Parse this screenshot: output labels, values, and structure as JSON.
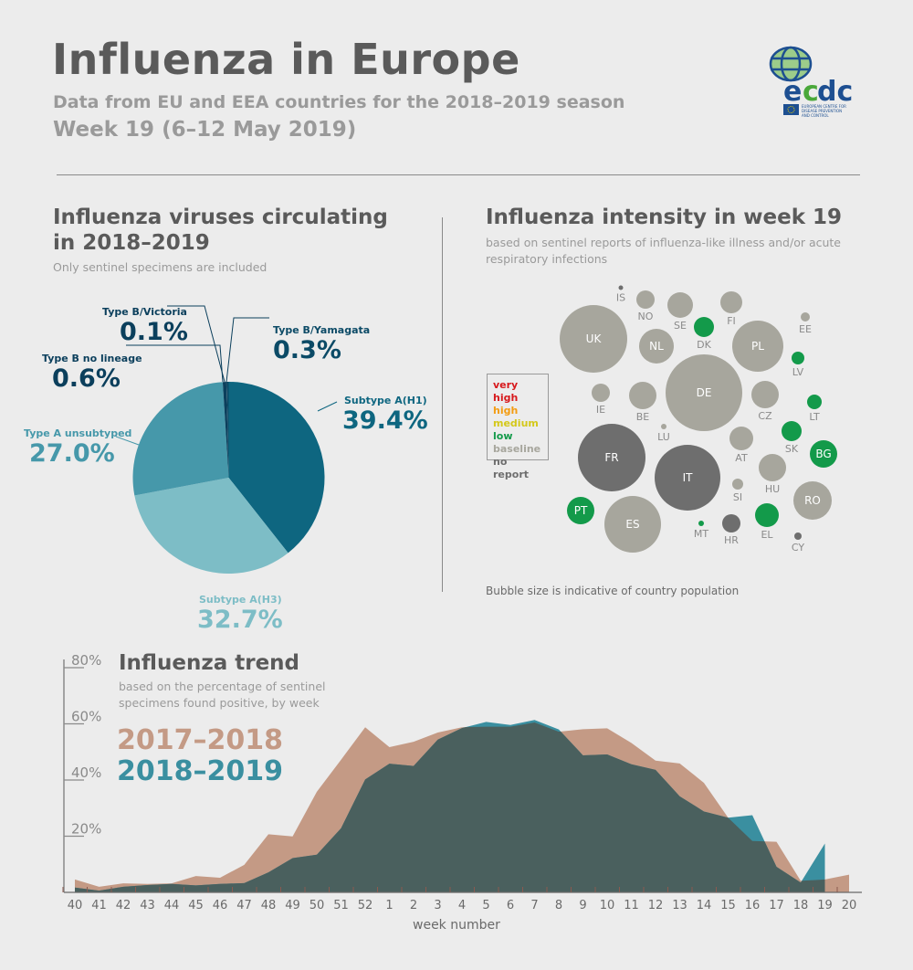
{
  "header": {
    "title": "Influenza in Europe",
    "subtitle": "Data from EU and EEA countries for the 2018–2019 season",
    "week": "Week 19 (6–12 May 2019)",
    "logo_text": "ecdc",
    "logo_caption": "EUROPEAN CENTRE FOR DISEASE PREVENTION AND CONTROL"
  },
  "viruses": {
    "title_line1": "Influenza viruses circulating",
    "title_line2": "in 2018–2019",
    "note": "Only sentinel specimens are included"
  },
  "intensity": {
    "title": "Influenza intensity in week 19",
    "note": "based on sentinel reports of influenza-like illness and/or acute respiratory infections",
    "footnote": "Bubble size is indicative of country population"
  },
  "trend": {
    "title": "Influenza trend",
    "note": "based on the percentage of sentinel specimens found positive, by week"
  },
  "chart_data": [
    {
      "type": "pie",
      "slices": [
        {
          "label": "Subtype A(H1)",
          "value": 39.4,
          "display": "39.4%",
          "color": "#0e6680"
        },
        {
          "label": "Subtype A(H3)",
          "value": 32.7,
          "display": "32.7%",
          "color": "#7dbdc6"
        },
        {
          "label": "Type A unsubtyped",
          "value": 27.0,
          "display": "27.0%",
          "color": "#4698aa"
        },
        {
          "label": "Type B no lineage",
          "value": 0.6,
          "display": "0.6%",
          "color": "#0b3f5c"
        },
        {
          "label": "Type B/Victoria",
          "value": 0.1,
          "display": "0.1%",
          "color": "#0b3f5c"
        },
        {
          "label": "Type B/Yamagata",
          "value": 0.3,
          "display": "0.3%",
          "color": "#0b4a66"
        }
      ]
    },
    {
      "type": "bubble",
      "legend": [
        {
          "label": "very high",
          "color": "#d7191c"
        },
        {
          "label": "high",
          "color": "#f39c12"
        },
        {
          "label": "medium",
          "color": "#d4c81a"
        },
        {
          "label": "low",
          "color": "#139a4a"
        },
        {
          "label": "baseline",
          "color": "#a7a69d"
        },
        {
          "label": "no report",
          "color": "#6e6e6e"
        }
      ],
      "countries": [
        {
          "code": "IS",
          "status": "no report"
        },
        {
          "code": "NO",
          "status": "baseline"
        },
        {
          "code": "SE",
          "status": "baseline"
        },
        {
          "code": "FI",
          "status": "baseline"
        },
        {
          "code": "DK",
          "status": "low"
        },
        {
          "code": "EE",
          "status": "baseline"
        },
        {
          "code": "UK",
          "status": "baseline"
        },
        {
          "code": "NL",
          "status": "baseline"
        },
        {
          "code": "PL",
          "status": "baseline"
        },
        {
          "code": "LV",
          "status": "low"
        },
        {
          "code": "DE",
          "status": "baseline"
        },
        {
          "code": "IE",
          "status": "baseline"
        },
        {
          "code": "BE",
          "status": "baseline"
        },
        {
          "code": "CZ",
          "status": "baseline"
        },
        {
          "code": "LT",
          "status": "low"
        },
        {
          "code": "LU",
          "status": "baseline"
        },
        {
          "code": "AT",
          "status": "baseline"
        },
        {
          "code": "SK",
          "status": "low"
        },
        {
          "code": "BG",
          "status": "low"
        },
        {
          "code": "FR",
          "status": "no report"
        },
        {
          "code": "IT",
          "status": "no report"
        },
        {
          "code": "HU",
          "status": "baseline"
        },
        {
          "code": "SI",
          "status": "baseline"
        },
        {
          "code": "RO",
          "status": "baseline"
        },
        {
          "code": "PT",
          "status": "low"
        },
        {
          "code": "ES",
          "status": "baseline"
        },
        {
          "code": "MT",
          "status": "low"
        },
        {
          "code": "HR",
          "status": "no report"
        },
        {
          "code": "EL",
          "status": "low"
        },
        {
          "code": "CY",
          "status": "no report"
        }
      ]
    },
    {
      "type": "area",
      "xlabel": "week number",
      "categories": [
        "40",
        "41",
        "42",
        "43",
        "44",
        "45",
        "46",
        "47",
        "48",
        "49",
        "50",
        "51",
        "52",
        "1",
        "2",
        "3",
        "4",
        "5",
        "6",
        "7",
        "8",
        "9",
        "10",
        "11",
        "12",
        "13",
        "14",
        "15",
        "16",
        "17",
        "18",
        "19",
        "20"
      ],
      "ylim": [
        0,
        80
      ],
      "yticks": [
        "20%",
        "40%",
        "60%",
        "80%"
      ],
      "series": [
        {
          "name": "2017–2018",
          "color": "#c49a85",
          "values": [
            4.6,
            2,
            3.2,
            3,
            3.2,
            5.8,
            5.2,
            9.8,
            20.7,
            19.9,
            35.8,
            47.2,
            58.8,
            51.7,
            53.6,
            56.9,
            58.8,
            59,
            59,
            60.5,
            57.2,
            58.1,
            58.4,
            53.2,
            46.9,
            45.9,
            39,
            26.6,
            18.3,
            18,
            4.1,
            4.6,
            6.3
          ]
        },
        {
          "name": "2018–2019",
          "color": "#3a8fa0",
          "values": [
            1.7,
            0.6,
            2,
            2.6,
            3,
            2.5,
            3,
            3.3,
            7.1,
            12.2,
            13.4,
            22.8,
            40.2,
            45.8,
            45,
            54.4,
            58.5,
            60.7,
            59.6,
            61.4,
            58,
            48.8,
            49.1,
            45.6,
            43.6,
            34.2,
            28.8,
            26.6,
            27.5,
            9.1,
            3.5,
            17.4,
            null
          ]
        }
      ],
      "overlap_color": "#4a605e"
    }
  ]
}
